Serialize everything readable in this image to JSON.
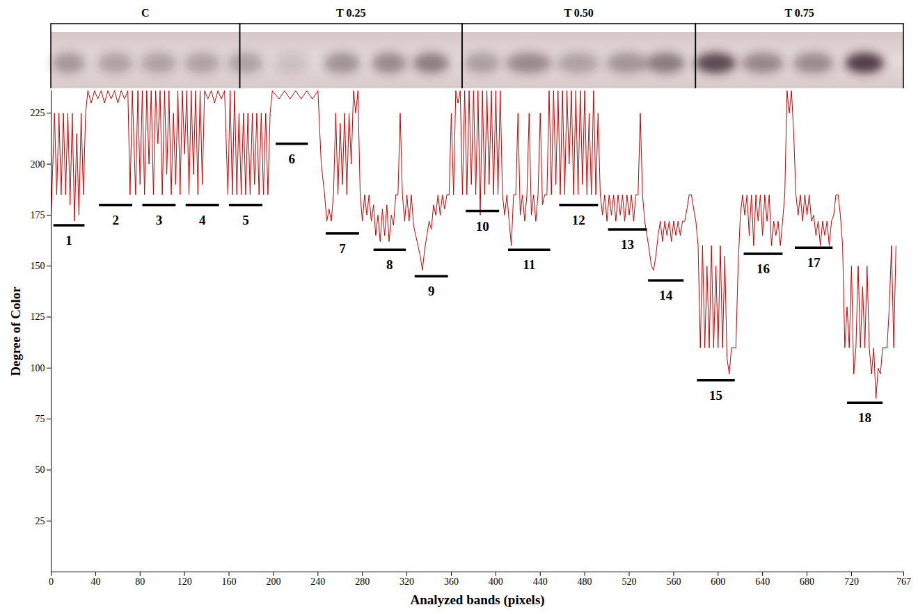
{
  "chart_data": {
    "type": "line",
    "x_label": "Analyzed bands (pixels)",
    "y_label": "Degree of Color",
    "color": "#cc0000",
    "grid": false,
    "xlim": [
      0,
      767
    ],
    "xticks": [
      0,
      40,
      80,
      120,
      160,
      200,
      240,
      280,
      320,
      360,
      400,
      440,
      480,
      520,
      560,
      600,
      640,
      680,
      720,
      767
    ],
    "ylim": [
      0,
      236
    ],
    "yticks": [
      25,
      50,
      75,
      100,
      125,
      150,
      175,
      200,
      225
    ],
    "groups": [
      {
        "label": "C",
        "x": [
          0,
          170
        ]
      },
      {
        "label": "T 0.25",
        "x": [
          170,
          370
        ]
      },
      {
        "label": "T 0.50",
        "x": [
          370,
          580
        ]
      },
      {
        "label": "T 0.75",
        "x": [
          580,
          767
        ]
      }
    ],
    "annotations": [
      {
        "label": "1",
        "x": [
          2,
          30
        ],
        "y": 170
      },
      {
        "label": "2",
        "x": [
          43,
          73
        ],
        "y": 180
      },
      {
        "label": "3",
        "x": [
          82,
          112
        ],
        "y": 180
      },
      {
        "label": "4",
        "x": [
          121,
          151
        ],
        "y": 180
      },
      {
        "label": "5",
        "x": [
          160,
          190
        ],
        "y": 180
      },
      {
        "label": "6",
        "x": [
          202,
          231
        ],
        "y": 210
      },
      {
        "label": "7",
        "x": [
          247,
          277
        ],
        "y": 166
      },
      {
        "label": "8",
        "x": [
          290,
          319
        ],
        "y": 158
      },
      {
        "label": "9",
        "x": [
          327,
          357
        ],
        "y": 145
      },
      {
        "label": "10",
        "x": [
          373,
          403
        ],
        "y": 177
      },
      {
        "label": "11",
        "x": [
          411,
          449
        ],
        "y": 158
      },
      {
        "label": "12",
        "x": [
          457,
          492
        ],
        "y": 180
      },
      {
        "label": "13",
        "x": [
          501,
          536
        ],
        "y": 168
      },
      {
        "label": "14",
        "x": [
          537,
          569
        ],
        "y": 143
      },
      {
        "label": "15",
        "x": [
          581,
          615
        ],
        "y": 94
      },
      {
        "label": "16",
        "x": [
          623,
          658
        ],
        "y": 156
      },
      {
        "label": "17",
        "x": [
          669,
          703
        ],
        "y": 159
      },
      {
        "label": "18",
        "x": [
          716,
          748
        ],
        "y": 83
      }
    ],
    "x": [
      0,
      3,
      5,
      7,
      9,
      11,
      13,
      15,
      17,
      19,
      21,
      23,
      25,
      27,
      29,
      31,
      33,
      36,
      39,
      42,
      45,
      48,
      51,
      54,
      57,
      60,
      63,
      66,
      69,
      71,
      73,
      76,
      78,
      80,
      82,
      84,
      86,
      88,
      90,
      92,
      94,
      96,
      98,
      100,
      102,
      104,
      106,
      108,
      110,
      112,
      114,
      116,
      118,
      120,
      122,
      124,
      126,
      128,
      130,
      132,
      134,
      136,
      138,
      141,
      144,
      147,
      150,
      153,
      156,
      159,
      161,
      163,
      165,
      167,
      169,
      171,
      173,
      175,
      177,
      179,
      181,
      183,
      185,
      187,
      189,
      191,
      193,
      195,
      197,
      199,
      205,
      210,
      215,
      220,
      225,
      230,
      235,
      240,
      243,
      246,
      248,
      250,
      252,
      254,
      256,
      258,
      260,
      262,
      264,
      266,
      268,
      270,
      272,
      274,
      276,
      278,
      280,
      282,
      284,
      286,
      288,
      290,
      292,
      294,
      296,
      298,
      300,
      302,
      304,
      306,
      308,
      310,
      312,
      314,
      316,
      318,
      320,
      322,
      324,
      326,
      328,
      330,
      332,
      334,
      336,
      338,
      340,
      342,
      344,
      346,
      348,
      350,
      352,
      354,
      356,
      358,
      360,
      362,
      364,
      366,
      368,
      370,
      372,
      374,
      376,
      378,
      380,
      382,
      384,
      386,
      388,
      390,
      392,
      394,
      396,
      398,
      400,
      402,
      404,
      406,
      408,
      410,
      412,
      414,
      416,
      418,
      420,
      422,
      424,
      426,
      428,
      430,
      432,
      434,
      436,
      438,
      440,
      442,
      444,
      446,
      448,
      450,
      452,
      454,
      456,
      458,
      460,
      462,
      464,
      466,
      468,
      470,
      472,
      474,
      476,
      478,
      480,
      482,
      484,
      486,
      488,
      490,
      492,
      494,
      496,
      498,
      500,
      502,
      504,
      506,
      508,
      510,
      512,
      514,
      516,
      518,
      520,
      522,
      524,
      526,
      528,
      530,
      532,
      534,
      536,
      538,
      540,
      542,
      544,
      546,
      548,
      550,
      552,
      554,
      556,
      558,
      560,
      562,
      564,
      566,
      568,
      570,
      572,
      574,
      576,
      578,
      580,
      582,
      584,
      586,
      588,
      590,
      592,
      594,
      596,
      598,
      600,
      602,
      604,
      606,
      608,
      610,
      612,
      614,
      616,
      618,
      620,
      622,
      624,
      626,
      628,
      630,
      632,
      634,
      636,
      638,
      640,
      642,
      644,
      646,
      648,
      650,
      652,
      654,
      656,
      658,
      660,
      662,
      664,
      666,
      668,
      670,
      672,
      674,
      676,
      678,
      680,
      682,
      684,
      686,
      688,
      690,
      692,
      694,
      696,
      698,
      700,
      702,
      704,
      706,
      708,
      710,
      712,
      714,
      716,
      718,
      720,
      722,
      724,
      726,
      728,
      730,
      732,
      734,
      736,
      738,
      740,
      742,
      744,
      746,
      748,
      750,
      752,
      754,
      756,
      758,
      760
    ],
    "values": [
      175,
      225,
      185,
      225,
      185,
      225,
      185,
      225,
      180,
      225,
      172,
      215,
      175,
      225,
      185,
      225,
      236,
      230,
      236,
      232,
      236,
      230,
      236,
      232,
      236,
      230,
      236,
      232,
      236,
      185,
      236,
      185,
      236,
      190,
      236,
      185,
      236,
      200,
      236,
      185,
      236,
      210,
      236,
      185,
      236,
      195,
      236,
      185,
      225,
      190,
      236,
      185,
      236,
      205,
      236,
      185,
      236,
      195,
      236,
      185,
      236,
      190,
      236,
      232,
      236,
      230,
      236,
      232,
      236,
      185,
      236,
      185,
      236,
      185,
      225,
      185,
      225,
      185,
      225,
      185,
      225,
      190,
      225,
      185,
      225,
      185,
      225,
      185,
      225,
      236,
      232,
      236,
      232,
      236,
      232,
      236,
      232,
      236,
      200,
      185,
      172,
      178,
      172,
      185,
      225,
      185,
      220,
      190,
      225,
      185,
      225,
      200,
      236,
      225,
      236,
      185,
      172,
      185,
      175,
      185,
      172,
      180,
      165,
      175,
      162,
      178,
      165,
      180,
      162,
      175,
      170,
      185,
      185,
      225,
      185,
      172,
      185,
      172,
      185,
      170,
      165,
      160,
      155,
      148,
      158,
      165,
      172,
      168,
      180,
      175,
      185,
      175,
      185,
      178,
      185,
      185,
      225,
      185,
      236,
      230,
      236,
      185,
      236,
      185,
      236,
      190,
      236,
      185,
      236,
      175,
      236,
      185,
      236,
      190,
      236,
      185,
      236,
      185,
      236,
      185,
      175,
      185,
      172,
      160,
      185,
      185,
      225,
      175,
      185,
      172,
      185,
      225,
      175,
      185,
      172,
      185,
      225,
      180,
      185,
      185,
      236,
      185,
      236,
      190,
      236,
      185,
      236,
      185,
      236,
      200,
      236,
      185,
      236,
      185,
      236,
      190,
      236,
      185,
      225,
      185,
      236,
      185,
      225,
      185,
      175,
      185,
      172,
      185,
      175,
      185,
      172,
      185,
      175,
      185,
      172,
      185,
      175,
      185,
      172,
      185,
      185,
      225,
      185,
      172,
      165,
      158,
      150,
      148,
      155,
      165,
      172,
      162,
      172,
      165,
      172,
      162,
      172,
      165,
      172,
      165,
      172,
      172,
      178,
      185,
      185,
      178,
      172,
      160,
      110,
      160,
      110,
      150,
      110,
      160,
      110,
      150,
      110,
      160,
      110,
      155,
      105,
      97,
      110,
      110,
      110,
      150,
      175,
      185,
      175,
      185,
      165,
      185,
      160,
      185,
      172,
      185,
      165,
      185,
      172,
      185,
      160,
      172,
      165,
      172,
      160,
      172,
      185,
      236,
      225,
      236,
      215,
      185,
      175,
      185,
      172,
      185,
      175,
      185,
      172,
      175,
      165,
      172,
      160,
      172,
      165,
      172,
      160,
      172,
      175,
      185,
      185,
      175,
      160,
      110,
      130,
      110,
      150,
      97,
      110,
      150,
      110,
      140,
      110,
      150,
      110,
      97,
      110,
      85,
      100,
      97,
      110,
      110,
      110,
      130,
      160,
      110,
      160
    ]
  }
}
